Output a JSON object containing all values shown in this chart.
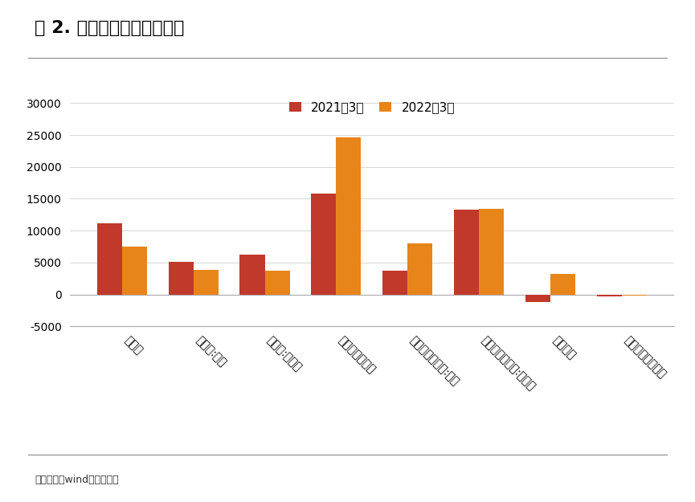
{
  "title": "图 2. 信贷结构一览（亿元）",
  "categories": [
    "居民户",
    "居民户:短期",
    "居民户:中长期",
    "企（事）业单位",
    "企（事）业单位:短期",
    "企（事）业单位:中长期",
    "票据融资",
    "非银行业金融机构"
  ],
  "series": [
    {
      "name": "2021年3月",
      "color": "#C0392B",
      "values": [
        11200,
        5100,
        6200,
        15800,
        3700,
        13300,
        -1200,
        -300
      ]
    },
    {
      "name": "2022年3月",
      "color": "#E8851A",
      "values": [
        7500,
        3800,
        3700,
        24600,
        8000,
        13400,
        3200,
        -200
      ]
    }
  ],
  "ylim": [
    -5000,
    32000
  ],
  "yticks": [
    -5000,
    0,
    5000,
    10000,
    15000,
    20000,
    25000,
    30000
  ],
  "footnote": "资料来源：wind，红塔证券",
  "background_color": "#ffffff",
  "bar_width": 0.35,
  "title_fontsize": 16,
  "tick_fontsize": 10,
  "legend_fontsize": 11
}
